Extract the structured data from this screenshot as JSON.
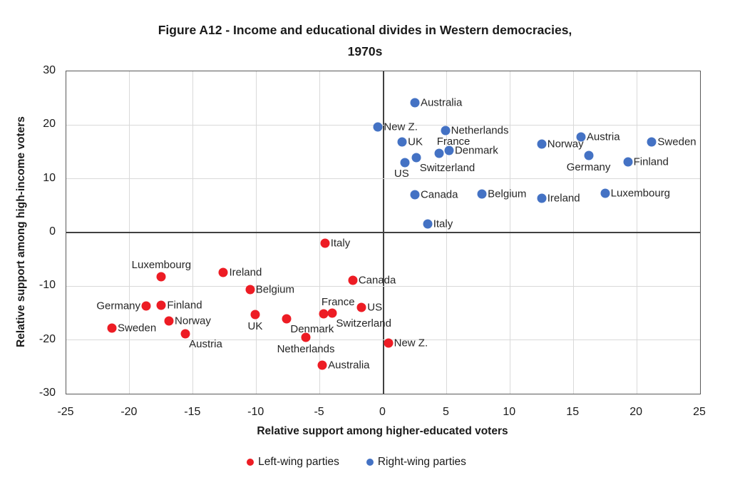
{
  "title": {
    "line1": "Figure A12 - Income and educational divides in Western democracies,",
    "line2": "1970s"
  },
  "axes": {
    "x": {
      "title": "Relative support among higher-educated voters",
      "ticks": [
        -25,
        -20,
        -15,
        -10,
        -5,
        0,
        5,
        10,
        15,
        20,
        25
      ]
    },
    "y": {
      "title": "Relative support among high-income voters",
      "ticks": [
        30,
        20,
        10,
        0,
        -10,
        -20,
        -30
      ]
    }
  },
  "legend": [
    {
      "label": "Left-wing parties",
      "color": "#ed1c24"
    },
    {
      "label": "Right-wing parties",
      "color": "#4472c4"
    }
  ],
  "chart_data": {
    "type": "scatter",
    "title": "Figure A12 - Income and educational divides in Western democracies, 1970s",
    "xlabel": "Relative support among higher-educated voters",
    "ylabel": "Relative support among high-income voters",
    "xlim": [
      -25,
      25
    ],
    "ylim": [
      -30,
      30
    ],
    "grid": true,
    "legend_position": "bottom",
    "series": [
      {
        "name": "Left-wing parties",
        "color": "#ed1c24",
        "points": [
          {
            "country": "Sweden",
            "x": -21.4,
            "y": -17.8,
            "label_pos": "right"
          },
          {
            "country": "Germany",
            "x": -18.7,
            "y": -13.7,
            "label_pos": "left"
          },
          {
            "country": "Finland",
            "x": -17.5,
            "y": -13.6,
            "label_pos": "right"
          },
          {
            "country": "Luxembourg",
            "x": -17.5,
            "y": -8.2,
            "label_pos": "above"
          },
          {
            "country": "Norway",
            "x": -16.9,
            "y": -16.4,
            "label_pos": "right"
          },
          {
            "country": "Austria",
            "x": -15.6,
            "y": -18.9,
            "label_pos": "below-right"
          },
          {
            "country": "Ireland",
            "x": -12.6,
            "y": -7.4,
            "label_pos": "right"
          },
          {
            "country": "Belgium",
            "x": -10.5,
            "y": -10.6,
            "label_pos": "right"
          },
          {
            "country": "UK",
            "x": -10.1,
            "y": -15.3,
            "label_pos": "below"
          },
          {
            "country": "Denmark",
            "x": -7.6,
            "y": -16.0,
            "label_pos": "below-right"
          },
          {
            "country": "Netherlands",
            "x": -6.1,
            "y": -19.5,
            "label_pos": "below"
          },
          {
            "country": "Australia",
            "x": -4.8,
            "y": -24.7,
            "label_pos": "right"
          },
          {
            "country": "Italy",
            "x": -4.6,
            "y": -2.0,
            "label_pos": "right"
          },
          {
            "country": "France",
            "x": -4.7,
            "y": -15.1,
            "label_pos": "above-right"
          },
          {
            "country": "Switzerland",
            "x": -4.0,
            "y": -15.0,
            "label_pos": "below-right"
          },
          {
            "country": "Canada",
            "x": -2.4,
            "y": -8.9,
            "label_pos": "right"
          },
          {
            "country": "US",
            "x": -1.7,
            "y": -14.0,
            "label_pos": "right"
          },
          {
            "country": "New Z.",
            "x": 0.4,
            "y": -20.6,
            "label_pos": "right"
          }
        ]
      },
      {
        "name": "Right-wing parties",
        "color": "#4472c4",
        "points": [
          {
            "country": "Australia",
            "x": 2.5,
            "y": 24.1,
            "label_pos": "right"
          },
          {
            "country": "New Z.",
            "x": -0.4,
            "y": 19.6,
            "label_pos": "right"
          },
          {
            "country": "Netherlands",
            "x": 4.9,
            "y": 19.0,
            "label_pos": "right"
          },
          {
            "country": "UK",
            "x": 1.5,
            "y": 16.9,
            "label_pos": "right"
          },
          {
            "country": "France",
            "x": 4.4,
            "y": 14.7,
            "label_pos": "above-right"
          },
          {
            "country": "Denmark",
            "x": 5.2,
            "y": 15.2,
            "label_pos": "right"
          },
          {
            "country": "US",
            "x": 1.7,
            "y": 13.0,
            "label_pos": "below-left"
          },
          {
            "country": "Switzerland",
            "x": 2.6,
            "y": 13.9,
            "label_pos": "below-right"
          },
          {
            "country": "Canada",
            "x": 2.5,
            "y": 7.1,
            "label_pos": "right"
          },
          {
            "country": "Belgium",
            "x": 7.8,
            "y": 7.2,
            "label_pos": "right"
          },
          {
            "country": "Ireland",
            "x": 12.5,
            "y": 6.4,
            "label_pos": "right"
          },
          {
            "country": "Italy",
            "x": 3.5,
            "y": 1.6,
            "label_pos": "right"
          },
          {
            "country": "Norway",
            "x": 12.5,
            "y": 16.5,
            "label_pos": "right"
          },
          {
            "country": "Austria",
            "x": 15.6,
            "y": 17.8,
            "label_pos": "right"
          },
          {
            "country": "Sweden",
            "x": 21.2,
            "y": 16.8,
            "label_pos": "right"
          },
          {
            "country": "Germany",
            "x": 16.2,
            "y": 14.4,
            "label_pos": "below"
          },
          {
            "country": "Finland",
            "x": 19.3,
            "y": 13.2,
            "label_pos": "right"
          },
          {
            "country": "Luxembourg",
            "x": 17.5,
            "y": 7.3,
            "label_pos": "right"
          }
        ]
      }
    ]
  }
}
